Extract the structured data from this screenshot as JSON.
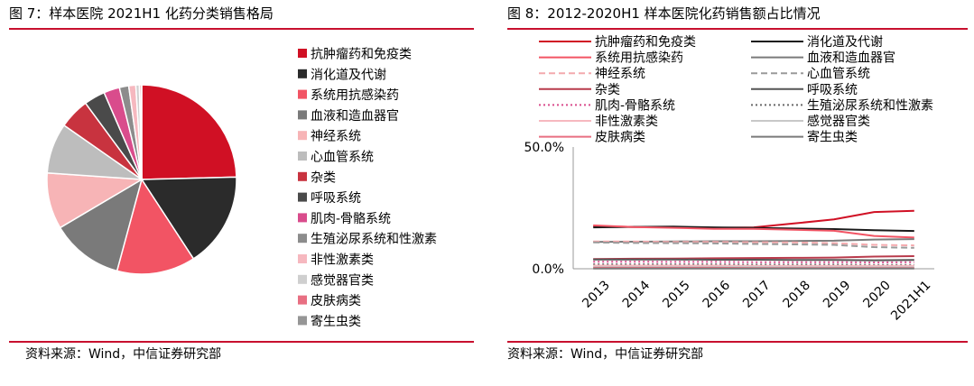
{
  "left": {
    "title": "图 7：样本医院 2021H1 化药分类销售格局",
    "source": "资料来源：Wind，中信证券研究部"
  },
  "right": {
    "title": "图 8：2012-2020H1 样本医院化药销售额占比情况",
    "source": "资料来源：Wind，中信证券研究部"
  },
  "colors": {
    "accent": "#c8102e"
  },
  "chart_data": [
    {
      "type": "pie",
      "legend_position": "right",
      "slices": [
        {
          "label": "抗肿瘤药和免疫类",
          "value": 24.6,
          "color": "#d01024"
        },
        {
          "label": "消化道及代谢",
          "value": 16.2,
          "color": "#2b2b2b"
        },
        {
          "label": "系统用抗感染药",
          "value": 13.4,
          "color": "#f25464"
        },
        {
          "label": "血液和造血器官",
          "value": 12.3,
          "color": "#7a7a7a"
        },
        {
          "label": "神经系统",
          "value": 9.6,
          "color": "#f7b4b6"
        },
        {
          "label": "心血管系统",
          "value": 8.6,
          "color": "#bdbdbd"
        },
        {
          "label": "杂类",
          "value": 5.2,
          "color": "#c8333f"
        },
        {
          "label": "呼吸系统",
          "value": 3.6,
          "color": "#4a4a4a"
        },
        {
          "label": "肌肉-骨骼系统",
          "value": 2.7,
          "color": "#d94c8c"
        },
        {
          "label": "生殖泌尿系统和性激素",
          "value": 1.6,
          "color": "#8c8c8c"
        },
        {
          "label": "非性激素类",
          "value": 1.2,
          "color": "#f6b8bf"
        },
        {
          "label": "感觉器官类",
          "value": 0.6,
          "color": "#cfcfcf"
        },
        {
          "label": "皮肤病类",
          "value": 0.3,
          "color": "#e86f82"
        },
        {
          "label": "寄生虫类",
          "value": 0.1,
          "color": "#969696"
        }
      ]
    },
    {
      "type": "line",
      "x": [
        "2013",
        "2014",
        "2015",
        "2016",
        "2017",
        "2018",
        "2019",
        "2020",
        "2021H1"
      ],
      "y_tick_labels": [
        "50.0%",
        "0.0%"
      ],
      "ylim": [
        0,
        50
      ],
      "grid": false,
      "legend_position": "top",
      "series": [
        {
          "name": "抗肿瘤药和免疫类",
          "color": "#d01024",
          "dash": "solid",
          "values": [
            17.5,
            17.2,
            17.0,
            16.8,
            17.0,
            18.6,
            20.3,
            23.3,
            23.8
          ]
        },
        {
          "name": "消化道及代谢",
          "color": "#1a1a1a",
          "dash": "solid",
          "values": [
            17.0,
            17.2,
            17.3,
            17.0,
            16.8,
            16.5,
            16.3,
            15.8,
            15.5
          ]
        },
        {
          "name": "系统用抗感染药",
          "color": "#f25464",
          "dash": "solid",
          "values": [
            17.8,
            17.1,
            16.8,
            16.4,
            16.4,
            16.0,
            15.6,
            13.5,
            12.8
          ]
        },
        {
          "name": "血液和造血器官",
          "color": "#7a7a7a",
          "dash": "solid",
          "values": [
            11.0,
            11.1,
            11.2,
            11.3,
            11.3,
            11.4,
            11.5,
            12.0,
            12.2
          ]
        },
        {
          "name": "神经系统",
          "color": "#f4a9ad",
          "dash": "dashed",
          "values": [
            11.2,
            11.2,
            11.0,
            11.0,
            10.9,
            10.8,
            10.5,
            9.8,
            9.6
          ]
        },
        {
          "name": "心血管系统",
          "color": "#9a9a9a",
          "dash": "dashed",
          "values": [
            10.8,
            10.6,
            10.5,
            10.4,
            10.2,
            10.0,
            9.8,
            8.9,
            8.6
          ]
        },
        {
          "name": "杂类",
          "color": "#b83a4b",
          "dash": "solid",
          "values": [
            4.0,
            4.1,
            4.2,
            4.3,
            4.4,
            4.5,
            4.6,
            5.0,
            5.2
          ]
        },
        {
          "name": "呼吸系统",
          "color": "#555555",
          "dash": "solid",
          "values": [
            3.8,
            3.8,
            3.8,
            3.7,
            3.7,
            3.6,
            3.6,
            3.5,
            3.6
          ]
        },
        {
          "name": "肌肉-骨骼系统",
          "color": "#d94c8c",
          "dash": "dotted",
          "values": [
            2.9,
            2.9,
            2.8,
            2.8,
            2.7,
            2.7,
            2.7,
            2.6,
            2.7
          ]
        },
        {
          "name": "生殖泌尿系统和性激素",
          "color": "#6a6a6a",
          "dash": "dotted",
          "values": [
            1.8,
            1.8,
            1.8,
            1.8,
            1.7,
            1.7,
            1.7,
            1.6,
            1.6
          ]
        },
        {
          "name": "非性激素类",
          "color": "#f6b8bf",
          "dash": "solid",
          "values": [
            1.3,
            1.3,
            1.3,
            1.3,
            1.2,
            1.2,
            1.2,
            1.2,
            1.2
          ]
        },
        {
          "name": "感觉器官类",
          "color": "#c8c8c8",
          "dash": "solid",
          "values": [
            0.7,
            0.7,
            0.7,
            0.7,
            0.7,
            0.6,
            0.6,
            0.6,
            0.6
          ]
        },
        {
          "name": "皮肤病类",
          "color": "#e86f82",
          "dash": "solid",
          "values": [
            0.4,
            0.4,
            0.4,
            0.4,
            0.3,
            0.3,
            0.3,
            0.3,
            0.3
          ]
        },
        {
          "name": "寄生虫类",
          "color": "#7a7a7a",
          "dash": "solid",
          "values": [
            0.1,
            0.1,
            0.1,
            0.1,
            0.1,
            0.1,
            0.1,
            0.1,
            0.1
          ]
        }
      ]
    }
  ]
}
